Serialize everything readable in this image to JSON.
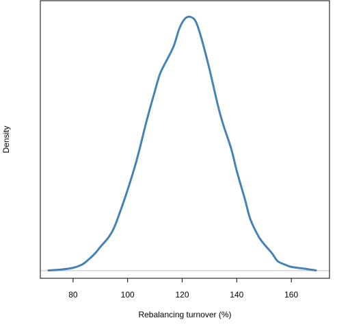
{
  "chart_data": {
    "type": "line",
    "title": "",
    "xlabel": "Rebalancing turnover (%)",
    "ylabel": "Density",
    "xlim": [
      68,
      174
    ],
    "ylim": [
      -0.0008,
      0.0284
    ],
    "x_ticks": [
      80,
      100,
      120,
      140,
      160
    ],
    "y_ticks_shown": false,
    "grid": false,
    "legend": "none",
    "baseline": {
      "y": 0,
      "color": "#bebebe"
    },
    "series": [
      {
        "color": "#4682b4",
        "x": [
          71,
          75,
          80,
          83,
          85,
          88,
          90,
          93,
          95,
          97,
          100,
          103,
          105,
          107,
          110,
          112,
          115,
          117,
          119,
          121,
          123,
          125,
          127,
          130,
          133,
          135,
          138,
          140,
          143,
          145,
          148,
          150,
          153,
          155,
          158,
          160,
          165,
          169
        ],
        "y": [
          3e-05,
          0.0001,
          0.0003,
          0.0006,
          0.001,
          0.0018,
          0.0025,
          0.0035,
          0.0045,
          0.006,
          0.0085,
          0.0113,
          0.0135,
          0.0158,
          0.0189,
          0.0208,
          0.0225,
          0.0237,
          0.0255,
          0.0265,
          0.0267,
          0.0262,
          0.0245,
          0.0212,
          0.0175,
          0.0154,
          0.0128,
          0.0105,
          0.0075,
          0.0054,
          0.0036,
          0.0028,
          0.0018,
          0.001,
          0.0006,
          0.0004,
          0.0002,
          3e-05
        ]
      }
    ]
  }
}
